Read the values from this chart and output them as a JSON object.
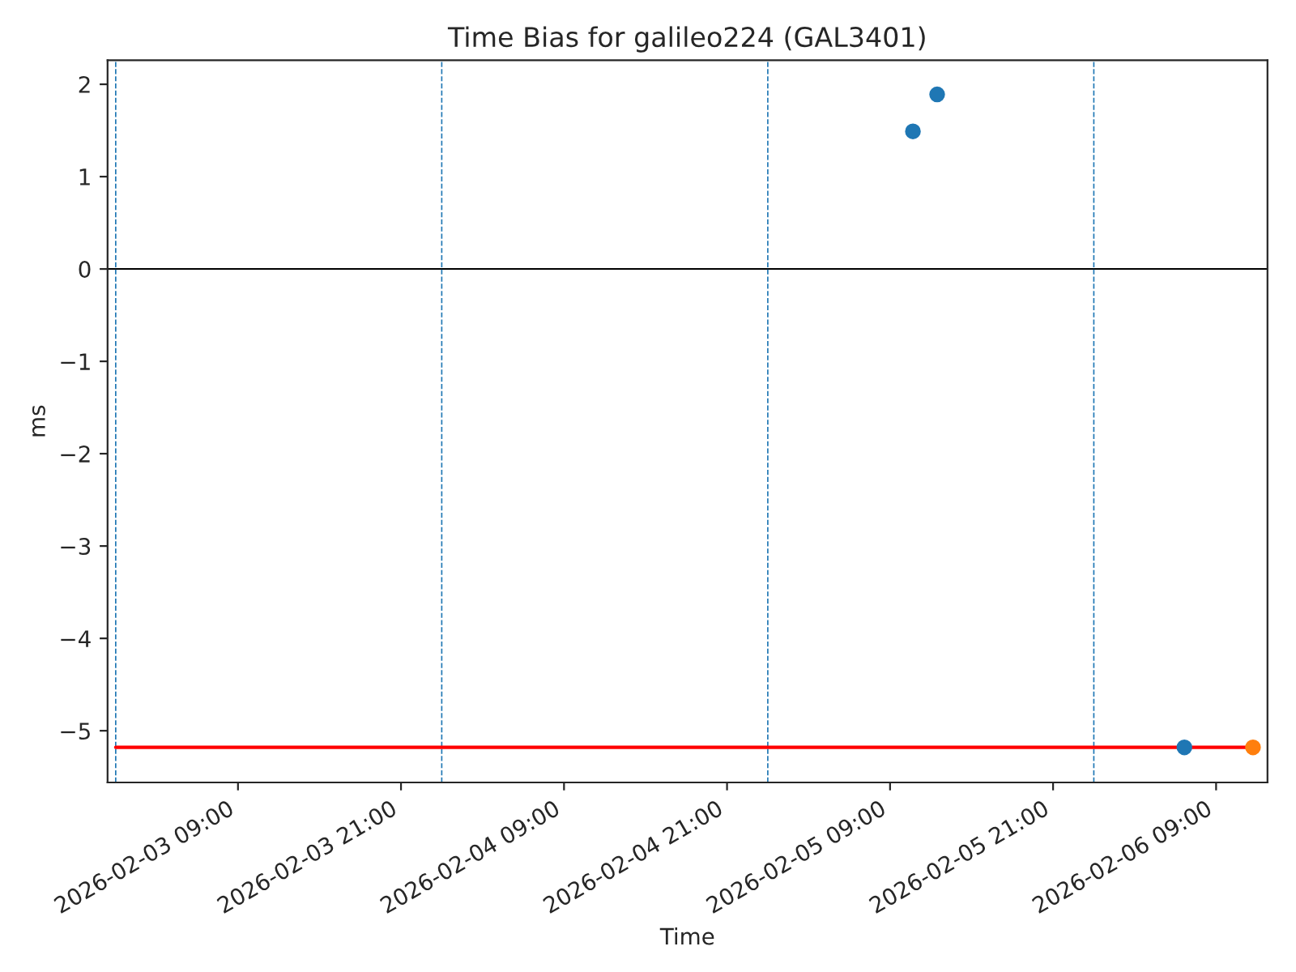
{
  "chart_data": {
    "type": "scatter",
    "title": "Time Bias for galileo224 (GAL3401)",
    "xlabel": "Time",
    "ylabel": "ms",
    "series": [
      {
        "type": "line",
        "marker": "none",
        "color": "#ff0000",
        "x": [
          "2026-02-03T00:00",
          "2026-02-06T11:43"
        ],
        "values": [
          -5.18,
          -5.18
        ]
      },
      {
        "color": "#1f77b4",
        "x": [
          "2026-02-05T10:41",
          "2026-02-05T12:28",
          "2026-02-06T06:40"
        ],
        "values": [
          1.49,
          1.89,
          -5.18
        ]
      },
      {
        "color": "#ff7f0e",
        "x": [
          "2026-02-06T11:43"
        ],
        "values": [
          -5.18
        ]
      }
    ],
    "xlim": [
      "2026-02-02T23:24",
      "2026-02-06T12:47"
    ],
    "xticks": [
      {
        "value": "2026-02-03T09:00",
        "label": "2026-02-03 09:00"
      },
      {
        "value": "2026-02-03T21:00",
        "label": "2026-02-03 21:00"
      },
      {
        "value": "2026-02-04T09:00",
        "label": "2026-02-04 09:00"
      },
      {
        "value": "2026-02-04T21:00",
        "label": "2026-02-04 21:00"
      },
      {
        "value": "2026-02-05T09:00",
        "label": "2026-02-05 09:00"
      },
      {
        "value": "2026-02-05T21:00",
        "label": "2026-02-05 21:00"
      },
      {
        "value": "2026-02-06T09:00",
        "label": "2026-02-06 09:00"
      }
    ],
    "ylim": [
      -5.56,
      2.26
    ],
    "yticks": [
      -5,
      -4,
      -3,
      -2,
      -1,
      0,
      1,
      2
    ],
    "ref_lines": [
      {
        "axis": "y",
        "value": 0,
        "color": "#000000",
        "line_style": "solid"
      },
      {
        "axis": "x",
        "value": "2026-02-03T00:00",
        "color": "#1f77b4",
        "line_style": "dashed"
      },
      {
        "axis": "x",
        "value": "2026-02-04T00:00",
        "color": "#1f77b4",
        "line_style": "dashed"
      },
      {
        "axis": "x",
        "value": "2026-02-05T00:00",
        "color": "#1f77b4",
        "line_style": "dashed"
      },
      {
        "axis": "x",
        "value": "2026-02-06T00:00",
        "color": "#1f77b4",
        "line_style": "dashed"
      }
    ],
    "marker": "circle",
    "grid": false,
    "legend": false
  }
}
